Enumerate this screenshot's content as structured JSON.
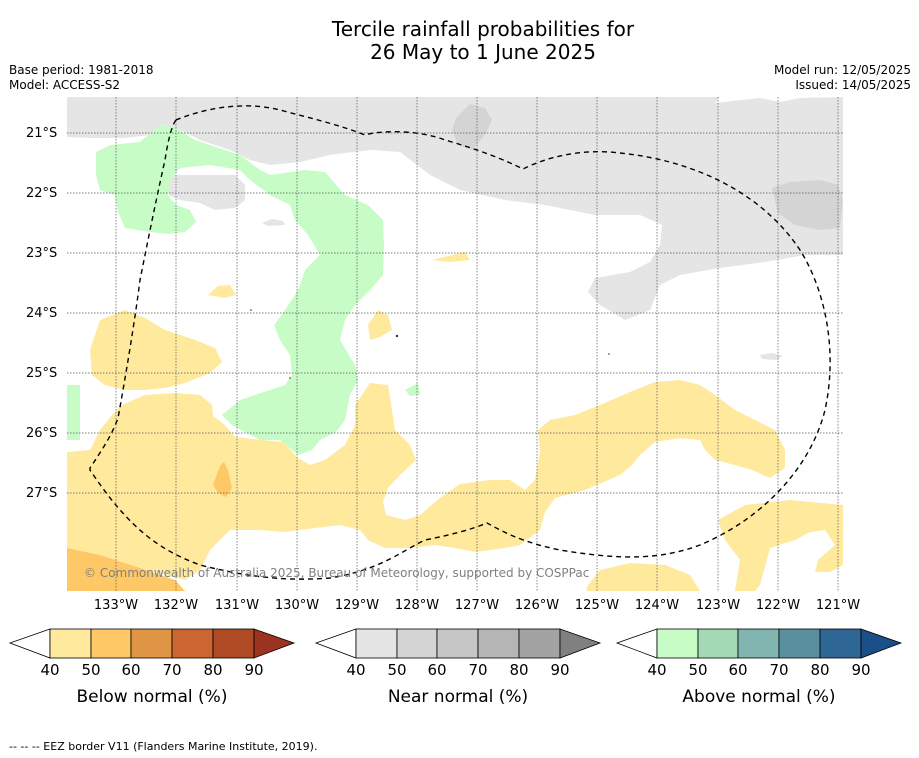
{
  "title_lines": [
    "Tercile rainfall probabilities for",
    "26 May to 1 June 2025"
  ],
  "meta_left": [
    "Base period: 1981-2018",
    "Model: ACCESS-S2"
  ],
  "meta_right": [
    "Model run: 12/05/2025",
    "Issued: 14/05/2025"
  ],
  "lat_labels": [
    "21°S",
    "22°S",
    "23°S",
    "24°S",
    "25°S",
    "26°S",
    "27°S"
  ],
  "lon_labels": [
    "133°W",
    "132°W",
    "131°W",
    "130°W",
    "129°W",
    "128°W",
    "127°W",
    "126°W",
    "125°W",
    "124°W",
    "123°W",
    "122°W",
    "121°W"
  ],
  "copyright": "© Commonwealth of Australia 2025, Bureau of Meteorology, supported by COSPPac",
  "colorbars": [
    {
      "label": "Below normal (%)",
      "ticks": [
        "40",
        "50",
        "60",
        "70",
        "80",
        "90"
      ],
      "colors": [
        "#ffffff",
        "#fee99d",
        "#fdc865",
        "#e09545",
        "#cc6630",
        "#b04a25",
        "#9c3320"
      ]
    },
    {
      "label": "Near normal (%)",
      "ticks": [
        "40",
        "50",
        "60",
        "70",
        "80",
        "90"
      ],
      "colors": [
        "#ffffff",
        "#e5e5e5",
        "#d4d4d4",
        "#c6c6c6",
        "#b5b5b5",
        "#a3a3a3",
        "#808080"
      ]
    },
    {
      "label": "Above normal (%)",
      "ticks": [
        "40",
        "50",
        "60",
        "70",
        "80",
        "90"
      ],
      "colors": [
        "#ffffff",
        "#c7fcc7",
        "#a3d9b5",
        "#81b5b0",
        "#5a8fa0",
        "#2e6696",
        "#1a4f88"
      ]
    }
  ],
  "eez_note": "-- -- -- EEZ border V11 (Flanders Marine Institute, 2019)."
}
